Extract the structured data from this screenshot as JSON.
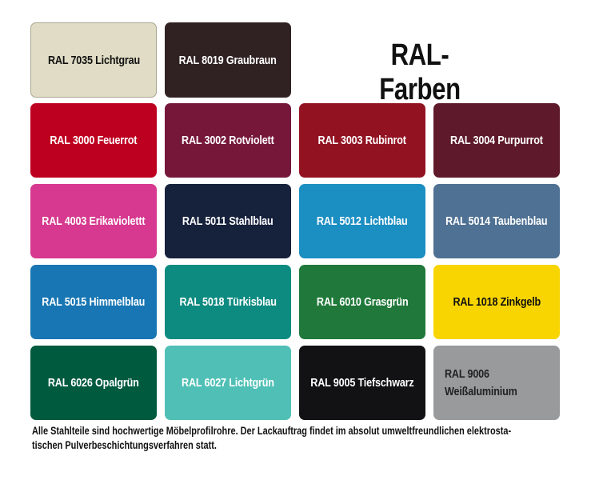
{
  "title": "RAL-Farben",
  "swatches": [
    {
      "label": "RAL 7035 Lichtgrau",
      "color": "#e1dcc5",
      "text": "#111111"
    },
    {
      "label": "RAL 8019 Graubraun",
      "color": "#302122",
      "text": "#ffffff"
    },
    {
      "label": "RAL 3000 Feuerrot",
      "color": "#be0020",
      "text": "#ffffff"
    },
    {
      "label": "RAL 3002 Rotviolett",
      "color": "#76173a",
      "text": "#ffffff"
    },
    {
      "label": "RAL 3003 Rubinrot",
      "color": "#931222",
      "text": "#ffffff"
    },
    {
      "label": "RAL 3004 Purpurrot",
      "color": "#5e1a2a",
      "text": "#ffffff"
    },
    {
      "label": "RAL 4003 Erikaviolettt",
      "color": "#d6398f",
      "text": "#ffffff"
    },
    {
      "label": "RAL 5011 Stahlblau",
      "color": "#16213c",
      "text": "#ffffff"
    },
    {
      "label": "RAL 5012 Lichtblau",
      "color": "#1b8ec2",
      "text": "#ffffff"
    },
    {
      "label": "RAL 5014 Taubenblau",
      "color": "#4f7193",
      "text": "#ffffff"
    },
    {
      "label": "RAL 5015 Himmelblau",
      "color": "#1776b3",
      "text": "#ffffff"
    },
    {
      "label": "RAL 5018 Türkisblau",
      "color": "#0e8b80",
      "text": "#ffffff"
    },
    {
      "label": "RAL 6010 Grasgrün",
      "color": "#20793a",
      "text": "#ffffff"
    },
    {
      "label": "RAL 1018 Zinkgelb",
      "color": "#f8d500",
      "text": "#111111"
    },
    {
      "label": "RAL 6026 Opalgrün",
      "color": "#005a3e",
      "text": "#ffffff"
    },
    {
      "label": "RAL 6027 Lichtgrün",
      "color": "#50c0b6",
      "text": "#ffffff"
    },
    {
      "label": "RAL 9005 Tiefschwarz",
      "color": "#121214",
      "text": "#ffffff"
    },
    {
      "label": "RAL 9006 Weißaluminium",
      "color": "#989a9b",
      "text": "#222222"
    }
  ],
  "caption": "Alle Stahlteile sind hochwertige Möbelprofilrohre. Der Lackauftrag findet im absolut umweltfreundlichen elektrosta-tischen Pulverbeschichtungsverfahren statt.",
  "caption_lines": [
    "Alle Stahlteile sind hochwertige Möbelprofilrohre. Der Lackauftrag findet im absolut umweltfreundlichen elektrosta-",
    "tischen Pulverbeschichtungsverfahren statt."
  ]
}
